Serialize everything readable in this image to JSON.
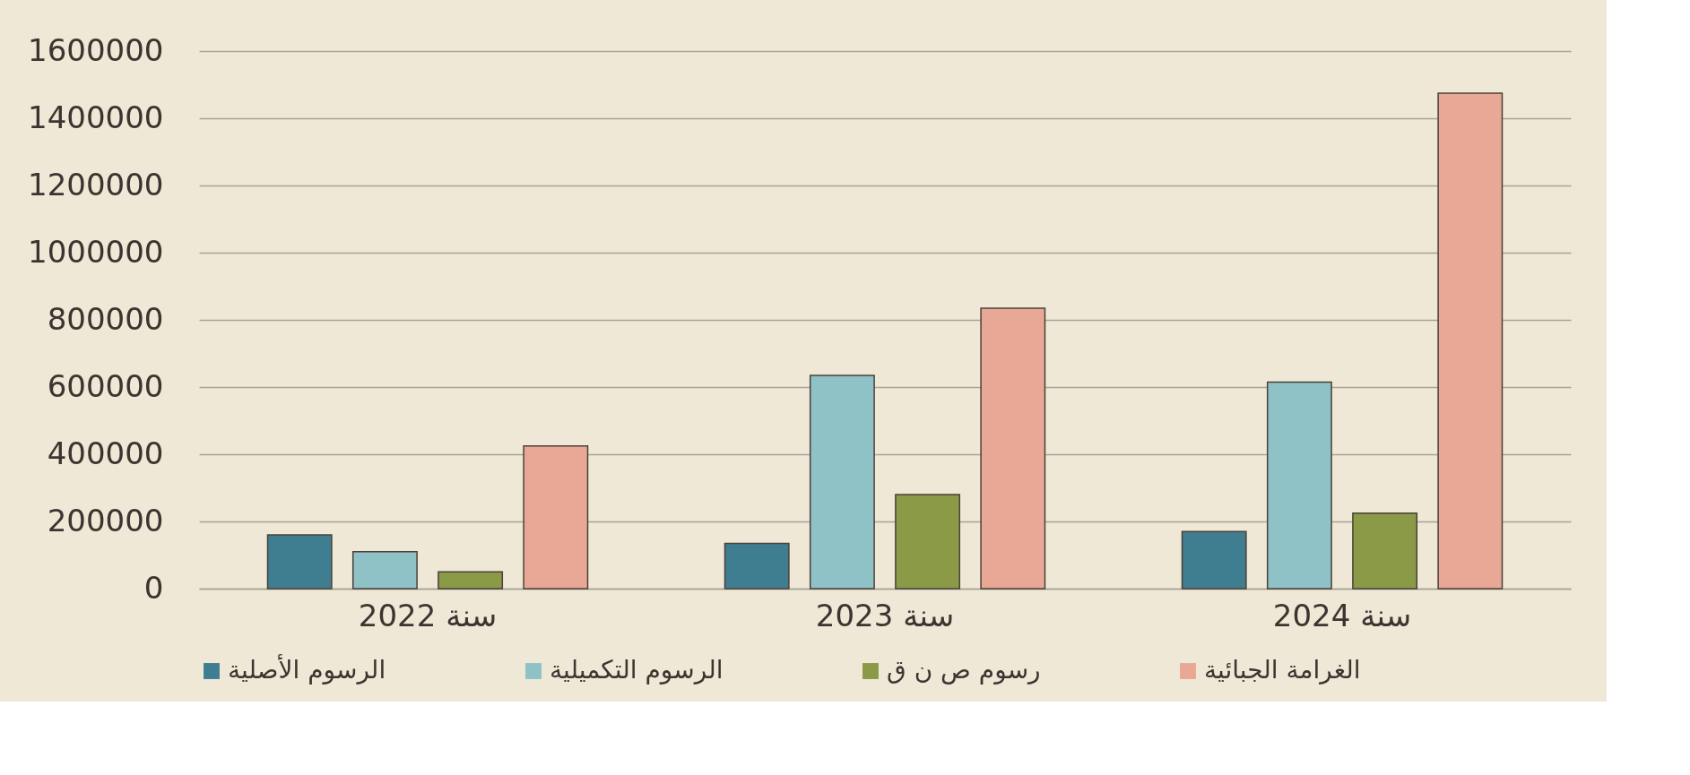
{
  "chart_data": {
    "type": "bar",
    "categories": [
      "سنة 2022",
      "سنة 2023",
      "سنة 2024"
    ],
    "series": [
      {
        "name": "الرسوم الأصلية",
        "color": "#3f7d90",
        "values": [
          160000,
          135000,
          170000
        ]
      },
      {
        "name": "الرسوم التكميلية",
        "color": "#8ec2c6",
        "values": [
          110000,
          635000,
          615000
        ]
      },
      {
        "name": "رسوم ص ن ق",
        "color": "#8b9a46",
        "values": [
          50000,
          280000,
          225000
        ]
      },
      {
        "name": "الغرامة الجبائية",
        "color": "#e9a895",
        "values": [
          425000,
          835000,
          1475000
        ]
      }
    ],
    "ylim": [
      0,
      1600000
    ],
    "yticks": [
      0,
      200000,
      400000,
      600000,
      800000,
      1000000,
      1200000,
      1400000,
      1600000
    ],
    "grid": "y",
    "legend": "bottom"
  }
}
